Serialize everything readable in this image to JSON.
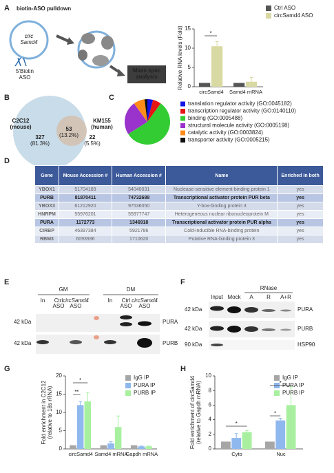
{
  "panel_labels": [
    "A",
    "B",
    "C",
    "D",
    "E",
    "F",
    "G",
    "H"
  ],
  "diagram": {
    "title": "biotin-ASO pulldown",
    "circ_label": [
      "circ",
      "Samd4"
    ],
    "aso_label": [
      "5'Biotin",
      "ASO"
    ],
    "ms_label": [
      "Mass spec",
      "analysis"
    ]
  },
  "chart_data": [
    {
      "type": "bar",
      "ylabel": [
        "Relative RNA levels (Fold)"
      ],
      "categories": [
        "circSamd4",
        "Samd4 mRNA"
      ],
      "series": [
        {
          "name": "Ctrl ASO",
          "color": "#555555",
          "values": [
            1,
            1
          ]
        },
        {
          "name": "circSamd4 ASO",
          "color": "#d9d9a3",
          "values": [
            10.5,
            1.3
          ],
          "errors": [
            1.2,
            1.1
          ]
        }
      ],
      "ylim": [
        0,
        15
      ],
      "yticks": [
        0,
        5,
        10,
        15
      ],
      "annotations": [
        "*"
      ]
    },
    {
      "type": "pie",
      "categories": [
        "translation regulator activity (GO:0045182)",
        "transcription regulator activity (GO:0140110)",
        "binding (GO:0005488)",
        "structural molecule activity (GO:0005198)",
        "catalytic activity (GO:0003824)",
        "transporter activity (GO:0005215)"
      ],
      "values": [
        4,
        6,
        56,
        24,
        8,
        2
      ],
      "colors": [
        "#1414e6",
        "#e61414",
        "#33cc33",
        "#9933cc",
        "#ff8c1a",
        "#111111"
      ]
    },
    {
      "type": "bar",
      "ylabel": [
        "Fold enrichment in C2C12",
        "(relative to 18s rRNA)"
      ],
      "categories": [
        "circSamd4",
        "Samd4 mRNA",
        "Gapdh mRNA"
      ],
      "series": [
        {
          "name": "IgG IP",
          "color": "#a6a6a6",
          "values": [
            1,
            1,
            1
          ]
        },
        {
          "name": "PURA IP",
          "color": "#8fb8ee",
          "values": [
            12,
            1.5,
            0.7
          ],
          "errors": [
            1,
            0.5,
            0.1
          ]
        },
        {
          "name": "PURB IP",
          "color": "#a8f0a0",
          "values": [
            13,
            6,
            0.7
          ],
          "errors": [
            2.5,
            3,
            0.1
          ]
        }
      ],
      "ylim": [
        0,
        20
      ],
      "yticks": [
        0,
        5,
        10,
        15,
        20
      ],
      "annotations": [
        "**",
        "*"
      ]
    },
    {
      "type": "bar",
      "ylabel": [
        "Fold enrichment of circSamd4",
        "(relative to Gapdh mRNA)"
      ],
      "categories": [
        "Cyto",
        "Nuc"
      ],
      "series": [
        {
          "name": "IgG IP",
          "color": "#a6a6a6",
          "values": [
            1,
            1
          ]
        },
        {
          "name": "PURA IP",
          "color": "#8fb8ee",
          "values": [
            1.5,
            3.9
          ],
          "errors": [
            0.6,
            0.3
          ]
        },
        {
          "name": "PURB IP",
          "color": "#a8f0a0",
          "values": [
            2.3,
            6
          ],
          "errors": [
            0.2,
            2.5
          ]
        }
      ],
      "ylim": [
        0,
        10
      ],
      "yticks": [
        0,
        2,
        4,
        6,
        8,
        10
      ],
      "annotations": [
        "*",
        "*",
        "*"
      ]
    }
  ],
  "venn": {
    "left": [
      "C2C12",
      "(mouse)"
    ],
    "right": [
      "KM155",
      "(human)"
    ],
    "only_left": [
      "327",
      "(81.3%)"
    ],
    "both": [
      "53",
      "(13.2%)"
    ],
    "only_right": [
      "22",
      "(5.5%)"
    ]
  },
  "table": {
    "header": [
      "Gene",
      "Mouse Accession #",
      "Human Accession #",
      "Name",
      "Enriched in both"
    ],
    "rows": [
      [
        "YBOX1",
        "51704189",
        "54040031",
        "Nuclease-sensitive element-binding protein 1",
        "yes"
      ],
      [
        "PURB",
        "81870411",
        "74732688",
        "Transcriptional activator protein PUR beta",
        "yes"
      ],
      [
        "YBOX3",
        "61212920",
        "97536050",
        "Y-box-binding protein 3",
        "yes"
      ],
      [
        "HNRPM",
        "55976201",
        "55977747",
        "Heterogeneous nuclear ribonucleoprotein M",
        "yes"
      ],
      [
        "PURA",
        "1172773",
        "1346918",
        "Transcriptional activator protein PUR alpha",
        "yes"
      ],
      [
        "CIRBP",
        "46397384",
        "5921786",
        "Cold-inducible RNA-binding protein",
        "yes"
      ],
      [
        "RBM3",
        "6093936",
        "1710620",
        "Putative RNA-binding protein 3",
        "yes"
      ]
    ],
    "bold_rows": [
      1,
      4
    ]
  },
  "blot_e": {
    "groups": [
      "GM",
      "DM"
    ],
    "lanes": [
      [
        "In"
      ],
      [
        "Ctrl",
        "ASO"
      ],
      [
        "circSamd4",
        "ASO"
      ],
      [
        "In"
      ],
      [
        "Ctrl",
        "ASO"
      ],
      [
        "circSamd4",
        "ASO"
      ]
    ],
    "markers": [
      "42 kDa",
      "42 kDa"
    ],
    "proteins": [
      "PURA",
      "PURB"
    ]
  },
  "blot_f": {
    "rnase": "RNase",
    "lanes": [
      "Input",
      "Mock",
      "A",
      "R",
      "A+R"
    ],
    "markers": [
      "42 kDa",
      "42 kDa",
      "90 kDa"
    ],
    "proteins": [
      "PURA",
      "PURB",
      "HSP90"
    ]
  }
}
